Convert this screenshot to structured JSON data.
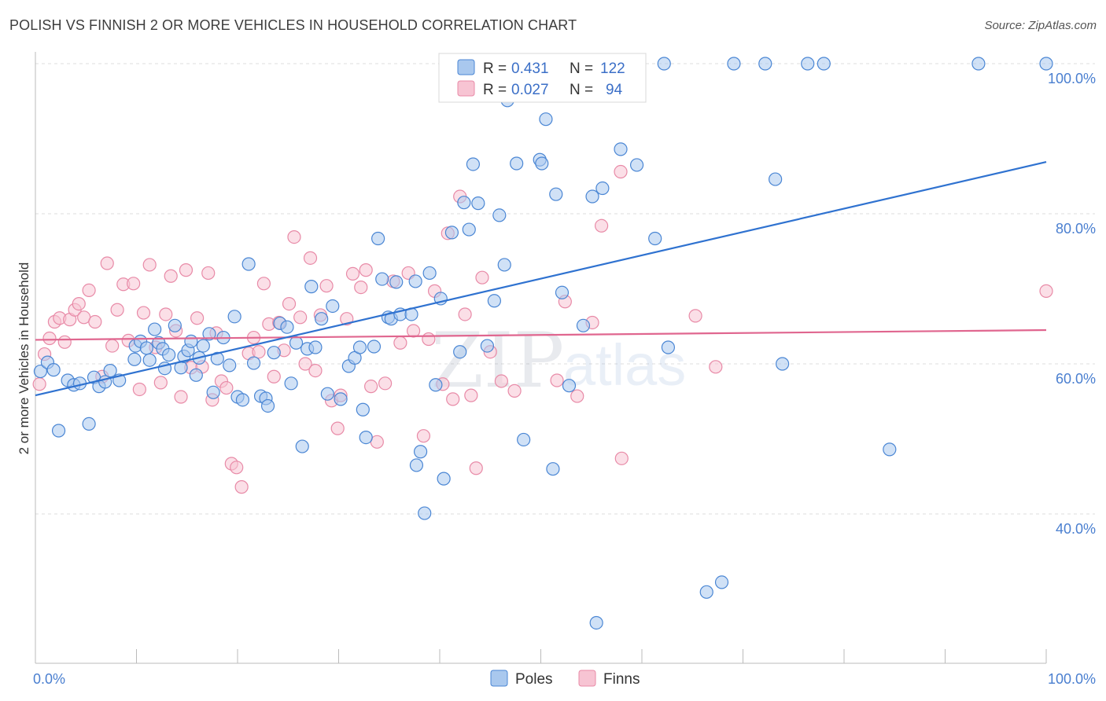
{
  "header": {
    "title": "POLISH VS FINNISH 2 OR MORE VEHICLES IN HOUSEHOLD CORRELATION CHART",
    "source": "Source: ZipAtlas.com"
  },
  "watermark": {
    "zip": "ZIP",
    "atlas": "atlas"
  },
  "colors": {
    "poles_fill": "#a9c8ee",
    "poles_stroke": "#4a86d4",
    "poles_line": "#2f72d0",
    "finns_fill": "#f7c4d3",
    "finns_stroke": "#e88aa7",
    "finns_line": "#e0668f",
    "tick_text": "#4a7fd0",
    "grid": "#dcdcdc"
  },
  "stats": [
    {
      "r_label": "R =",
      "r_value": "0.431",
      "n_label": "N =",
      "n_value": "122"
    },
    {
      "r_label": "R =",
      "r_value": "0.027",
      "n_label": "N =",
      "n_value": "94"
    }
  ],
  "chart_data": {
    "type": "scatter",
    "title": "POLISH VS FINNISH 2 OR MORE VEHICLES IN HOUSEHOLD CORRELATION CHART",
    "xlabel": "",
    "ylabel": "2 or more Vehicles in Household",
    "xlim": [
      0,
      100
    ],
    "ylim": [
      20,
      102
    ],
    "x_ticks": [
      0,
      10,
      20,
      30,
      40,
      50,
      60,
      70,
      80,
      90,
      100
    ],
    "x_tick_labels": [
      {
        "value": 0,
        "label": "0.0%"
      },
      {
        "value": 100,
        "label": "100.0%"
      }
    ],
    "y_ticks": [
      {
        "value": 40,
        "label": "40.0%"
      },
      {
        "value": 60,
        "label": "60.0%"
      },
      {
        "value": 80,
        "label": "80.0%"
      },
      {
        "value": 100,
        "label": "100.0%"
      }
    ],
    "grid": true,
    "legend_position": "bottom-center",
    "series": [
      {
        "name": "Poles",
        "color": "#a9c8ee",
        "trend": {
          "x": [
            0,
            100
          ],
          "y": [
            55.8,
            86.9
          ]
        },
        "points": [
          [
            0.5,
            59.0
          ],
          [
            1.2,
            60.2
          ],
          [
            1.8,
            59.2
          ],
          [
            2.3,
            51.1
          ],
          [
            3.2,
            57.8
          ],
          [
            3.8,
            57.2
          ],
          [
            4.4,
            57.4
          ],
          [
            5.3,
            52.0
          ],
          [
            5.8,
            58.2
          ],
          [
            6.3,
            57.0
          ],
          [
            6.9,
            57.6
          ],
          [
            7.4,
            59.1
          ],
          [
            8.3,
            57.8
          ],
          [
            9.8,
            60.6
          ],
          [
            9.9,
            62.4
          ],
          [
            10.4,
            63.0
          ],
          [
            11.0,
            62.1
          ],
          [
            11.3,
            60.5
          ],
          [
            11.8,
            64.6
          ],
          [
            12.2,
            62.8
          ],
          [
            12.6,
            62.0
          ],
          [
            12.8,
            59.4
          ],
          [
            13.2,
            61.2
          ],
          [
            13.8,
            65.1
          ],
          [
            14.4,
            59.5
          ],
          [
            14.7,
            61.0
          ],
          [
            15.1,
            61.8
          ],
          [
            15.4,
            63.0
          ],
          [
            15.9,
            58.5
          ],
          [
            16.2,
            60.8
          ],
          [
            16.6,
            62.4
          ],
          [
            17.2,
            64.0
          ],
          [
            17.6,
            56.2
          ],
          [
            18.0,
            60.7
          ],
          [
            18.6,
            63.5
          ],
          [
            19.2,
            59.8
          ],
          [
            19.7,
            66.3
          ],
          [
            20.0,
            55.6
          ],
          [
            20.5,
            55.2
          ],
          [
            21.1,
            73.3
          ],
          [
            21.6,
            60.1
          ],
          [
            22.3,
            55.7
          ],
          [
            22.8,
            55.4
          ],
          [
            23.0,
            54.4
          ],
          [
            23.6,
            61.5
          ],
          [
            24.2,
            65.4
          ],
          [
            24.9,
            64.9
          ],
          [
            25.3,
            57.4
          ],
          [
            25.8,
            62.8
          ],
          [
            26.4,
            49.0
          ],
          [
            26.9,
            62.0
          ],
          [
            27.3,
            70.3
          ],
          [
            27.7,
            62.2
          ],
          [
            28.3,
            66.0
          ],
          [
            28.9,
            56.0
          ],
          [
            29.4,
            67.7
          ],
          [
            30.2,
            55.3
          ],
          [
            31.0,
            59.7
          ],
          [
            31.6,
            60.8
          ],
          [
            32.1,
            62.2
          ],
          [
            32.4,
            53.9
          ],
          [
            32.7,
            50.2
          ],
          [
            33.5,
            62.3
          ],
          [
            33.9,
            76.7
          ],
          [
            34.3,
            71.3
          ],
          [
            34.9,
            66.2
          ],
          [
            35.2,
            66.0
          ],
          [
            35.7,
            70.9
          ],
          [
            36.1,
            66.6
          ],
          [
            37.2,
            66.6
          ],
          [
            37.6,
            71.0
          ],
          [
            38.1,
            48.3
          ],
          [
            37.7,
            46.5
          ],
          [
            38.5,
            40.1
          ],
          [
            39.0,
            72.1
          ],
          [
            39.6,
            57.2
          ],
          [
            40.1,
            68.7
          ],
          [
            40.4,
            44.7
          ],
          [
            41.2,
            77.5
          ],
          [
            42.0,
            61.6
          ],
          [
            42.4,
            81.5
          ],
          [
            42.9,
            77.9
          ],
          [
            43.3,
            86.6
          ],
          [
            43.8,
            81.4
          ],
          [
            44.7,
            62.4
          ],
          [
            45.4,
            68.4
          ],
          [
            45.9,
            79.8
          ],
          [
            46.4,
            73.2
          ],
          [
            46.7,
            95.1
          ],
          [
            47.1,
            100.0
          ],
          [
            47.6,
            86.7
          ],
          [
            48.3,
            49.9
          ],
          [
            49.1,
            100.0
          ],
          [
            49.6,
            100.0
          ],
          [
            49.9,
            87.2
          ],
          [
            50.1,
            86.7
          ],
          [
            50.5,
            92.6
          ],
          [
            51.2,
            46.0
          ],
          [
            51.5,
            82.6
          ],
          [
            52.1,
            69.5
          ],
          [
            52.8,
            57.1
          ],
          [
            53.6,
            100.0
          ],
          [
            54.2,
            65.1
          ],
          [
            55.1,
            82.3
          ],
          [
            55.5,
            25.5
          ],
          [
            56.1,
            83.4
          ],
          [
            57.9,
            88.6
          ],
          [
            59.5,
            86.5
          ],
          [
            61.3,
            76.7
          ],
          [
            62.2,
            100.0
          ],
          [
            62.6,
            62.2
          ],
          [
            66.4,
            29.6
          ],
          [
            67.9,
            30.9
          ],
          [
            69.1,
            100.0
          ],
          [
            72.2,
            100.0
          ],
          [
            73.2,
            84.6
          ],
          [
            73.9,
            60.0
          ],
          [
            76.4,
            100.0
          ],
          [
            78.0,
            100.0
          ],
          [
            84.5,
            48.6
          ],
          [
            93.3,
            100.0
          ],
          [
            100.0,
            100.0
          ]
        ]
      },
      {
        "name": "Finns",
        "color": "#f7c4d3",
        "trend": {
          "x": [
            0,
            100
          ],
          "y": [
            63.2,
            64.5
          ]
        },
        "points": [
          [
            0.4,
            57.3
          ],
          [
            0.9,
            61.3
          ],
          [
            1.4,
            63.4
          ],
          [
            1.9,
            65.6
          ],
          [
            2.4,
            66.1
          ],
          [
            2.9,
            62.9
          ],
          [
            3.4,
            65.9
          ],
          [
            3.9,
            67.2
          ],
          [
            4.3,
            68.0
          ],
          [
            4.8,
            66.2
          ],
          [
            5.3,
            69.8
          ],
          [
            5.9,
            65.6
          ],
          [
            6.6,
            58.3
          ],
          [
            7.1,
            73.4
          ],
          [
            7.6,
            62.4
          ],
          [
            8.1,
            67.2
          ],
          [
            8.7,
            70.6
          ],
          [
            9.2,
            63.1
          ],
          [
            9.7,
            70.7
          ],
          [
            10.3,
            56.6
          ],
          [
            10.7,
            66.8
          ],
          [
            11.3,
            73.2
          ],
          [
            11.9,
            62.2
          ],
          [
            12.4,
            57.5
          ],
          [
            12.9,
            66.6
          ],
          [
            13.4,
            71.7
          ],
          [
            13.9,
            64.4
          ],
          [
            14.4,
            55.6
          ],
          [
            14.9,
            72.5
          ],
          [
            15.4,
            59.5
          ],
          [
            16.0,
            66.1
          ],
          [
            16.5,
            59.6
          ],
          [
            17.1,
            72.1
          ],
          [
            17.5,
            55.2
          ],
          [
            17.9,
            64.1
          ],
          [
            18.4,
            57.7
          ],
          [
            18.9,
            56.8
          ],
          [
            19.4,
            46.7
          ],
          [
            19.9,
            46.2
          ],
          [
            20.4,
            43.6
          ],
          [
            21.1,
            61.4
          ],
          [
            21.6,
            63.5
          ],
          [
            22.1,
            61.6
          ],
          [
            22.6,
            70.7
          ],
          [
            23.1,
            65.3
          ],
          [
            23.6,
            58.3
          ],
          [
            24.1,
            65.5
          ],
          [
            24.6,
            61.8
          ],
          [
            25.1,
            68.0
          ],
          [
            25.6,
            76.9
          ],
          [
            26.2,
            66.2
          ],
          [
            26.7,
            60.0
          ],
          [
            27.2,
            74.1
          ],
          [
            27.7,
            59.1
          ],
          [
            28.2,
            66.5
          ],
          [
            28.8,
            70.4
          ],
          [
            29.3,
            55.1
          ],
          [
            29.9,
            51.4
          ],
          [
            30.2,
            55.8
          ],
          [
            30.8,
            66.0
          ],
          [
            31.4,
            72.0
          ],
          [
            32.2,
            70.2
          ],
          [
            32.7,
            72.5
          ],
          [
            33.2,
            57.0
          ],
          [
            33.8,
            49.6
          ],
          [
            34.6,
            57.4
          ],
          [
            35.4,
            71.0
          ],
          [
            36.1,
            62.8
          ],
          [
            36.9,
            72.1
          ],
          [
            37.4,
            64.4
          ],
          [
            38.4,
            50.4
          ],
          [
            38.9,
            63.3
          ],
          [
            39.5,
            69.7
          ],
          [
            40.3,
            57.3
          ],
          [
            40.8,
            77.4
          ],
          [
            41.3,
            55.3
          ],
          [
            42.0,
            82.3
          ],
          [
            42.5,
            66.6
          ],
          [
            43.1,
            55.8
          ],
          [
            43.6,
            46.1
          ],
          [
            44.2,
            71.5
          ],
          [
            45.0,
            61.6
          ],
          [
            46.1,
            57.7
          ],
          [
            47.4,
            56.4
          ],
          [
            51.6,
            57.8
          ],
          [
            52.4,
            68.3
          ],
          [
            53.6,
            55.7
          ],
          [
            55.1,
            65.5
          ],
          [
            56.0,
            78.4
          ],
          [
            57.9,
            85.6
          ],
          [
            58.0,
            47.4
          ],
          [
            65.3,
            66.4
          ],
          [
            67.3,
            59.6
          ],
          [
            100.0,
            69.7
          ]
        ]
      }
    ]
  },
  "legend": [
    {
      "label": "Poles"
    },
    {
      "label": "Finns"
    }
  ]
}
